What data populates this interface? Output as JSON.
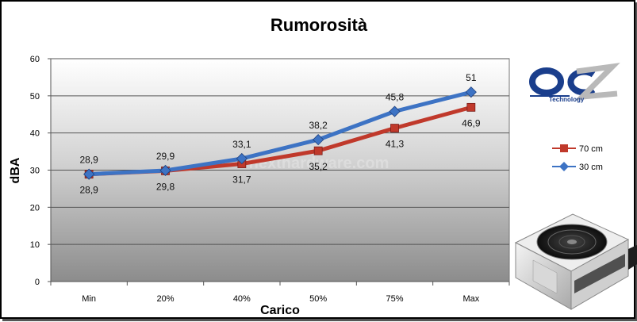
{
  "chart_data": {
    "type": "line",
    "title": "Rumorosità",
    "xlabel": "Carico",
    "ylabel": "dBA",
    "categories": [
      "Min",
      "20%",
      "40%",
      "50%",
      "75%",
      "Max"
    ],
    "ylim": [
      0,
      60
    ],
    "yticks": [
      0,
      10,
      20,
      30,
      40,
      50,
      60
    ],
    "grid": true,
    "legend_position": "right",
    "series": [
      {
        "name": "70 cm",
        "values": [
          28.9,
          29.8,
          31.7,
          35.2,
          41.3,
          46.9
        ],
        "labels": [
          "28,9",
          "29,8",
          "31,7",
          "35,2",
          "41,3",
          "46,9"
        ],
        "color": "#c0392b",
        "marker": "square",
        "label_position": "below"
      },
      {
        "name": "30 cm",
        "values": [
          28.9,
          29.9,
          33.1,
          38.2,
          45.8,
          51
        ],
        "labels": [
          "28,9",
          "29,9",
          "33,1",
          "38,2",
          "45,8",
          "51"
        ],
        "color": "#3d73c4",
        "marker": "diamond",
        "label_position": "above"
      }
    ]
  },
  "watermark": "nexthardware.com",
  "logo": {
    "text": "OCZ",
    "subtext": "Technology",
    "accent_color": "#1a3e8c"
  },
  "product_image": "power-supply-unit"
}
